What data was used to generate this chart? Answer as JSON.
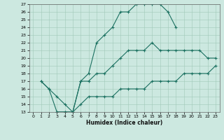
{
  "xlabel": "Humidex (Indice chaleur)",
  "bg_color": "#cce8e0",
  "grid_color": "#a0c8b8",
  "line_color": "#1a7060",
  "xlim": [
    -0.5,
    23.5
  ],
  "ylim": [
    13,
    27
  ],
  "xticks": [
    0,
    1,
    2,
    3,
    4,
    5,
    6,
    7,
    8,
    9,
    10,
    11,
    12,
    13,
    14,
    15,
    16,
    17,
    18,
    19,
    20,
    21,
    22,
    23
  ],
  "yticks": [
    13,
    14,
    15,
    16,
    17,
    18,
    19,
    20,
    21,
    22,
    23,
    24,
    25,
    26,
    27
  ],
  "curve1_x": [
    1,
    2,
    3,
    4,
    5,
    6,
    7,
    8,
    9,
    10,
    11,
    12,
    13,
    14,
    15,
    16,
    17,
    18
  ],
  "curve1_y": [
    17,
    16,
    13,
    13,
    13,
    17,
    18,
    22,
    23,
    24,
    26,
    26,
    27,
    27,
    27,
    27,
    26,
    24
  ],
  "curve2_x": [
    1,
    2,
    3,
    4,
    5,
    6,
    7,
    8,
    9,
    10,
    11,
    12,
    13,
    14,
    15,
    16,
    17,
    18,
    19,
    20,
    21,
    22,
    23
  ],
  "curve2_y": [
    17,
    16,
    15,
    14,
    13,
    17,
    17,
    18,
    18,
    19,
    20,
    21,
    21,
    21,
    22,
    21,
    21,
    21,
    21,
    21,
    21,
    20,
    20
  ],
  "curve3_x": [
    3,
    4,
    5,
    6,
    7,
    8,
    9,
    10,
    11,
    12,
    13,
    14,
    15,
    16,
    17,
    18,
    19,
    20,
    21,
    22,
    23
  ],
  "curve3_y": [
    13,
    13,
    13,
    14,
    15,
    15,
    15,
    15,
    16,
    16,
    16,
    16,
    17,
    17,
    17,
    17,
    18,
    18,
    18,
    18,
    19
  ]
}
